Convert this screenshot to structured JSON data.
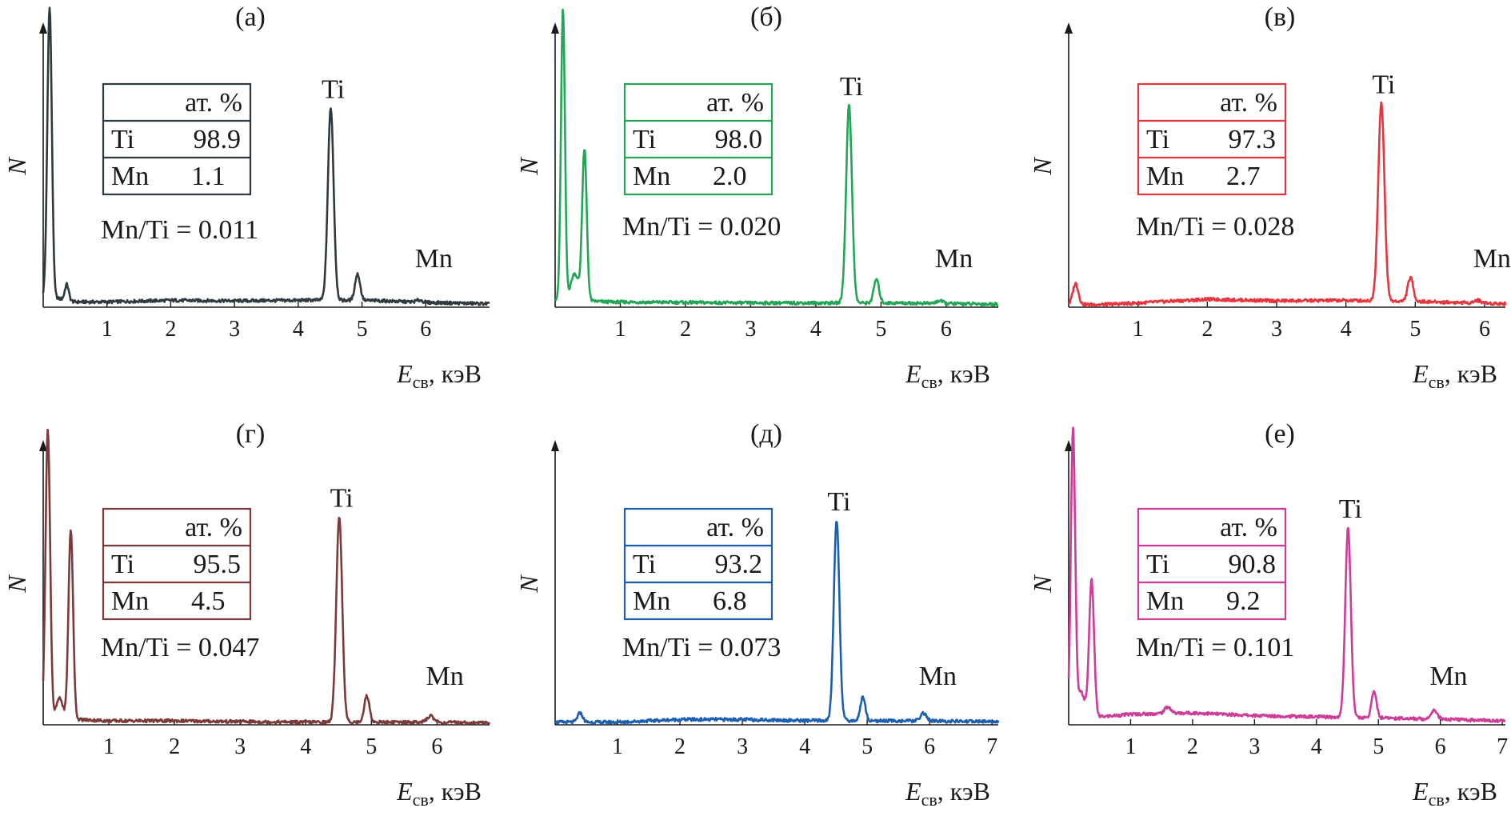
{
  "chart_data": [
    {
      "type": "line",
      "panel_label": "(а)",
      "color": "#2f3a3e",
      "ylabel": "N",
      "xlabel_main": "E",
      "xlabel_sub": "св",
      "xlabel_unit": ", кэВ",
      "xlim": [
        0,
        7.0
      ],
      "ylim": [
        0,
        100
      ],
      "xticks": [
        "1",
        "2",
        "3",
        "4",
        "5",
        "6"
      ],
      "table_header": "ат. %",
      "table_rows": [
        {
          "element": "Ti",
          "value": "98.9"
        },
        {
          "element": "Mn",
          "value": "1.1"
        }
      ],
      "ratio_text": "Mn/Ti = 0.011",
      "peak_labels": [
        {
          "text": "Ti",
          "x": 4.51
        },
        {
          "text": "Mn",
          "x": 5.9
        }
      ],
      "background": [
        [
          0.1,
          4
        ],
        [
          0.5,
          2
        ],
        [
          1,
          2
        ],
        [
          2,
          2.6
        ],
        [
          3,
          2.4
        ],
        [
          4,
          2.6
        ],
        [
          4.3,
          2.7
        ],
        [
          5.2,
          2.5
        ],
        [
          6,
          1.8
        ],
        [
          7,
          1.3
        ]
      ],
      "peaks": [
        {
          "center": 0.1,
          "height": 110,
          "width": 0.035
        },
        {
          "center": 0.37,
          "height": 6,
          "width": 0.03
        },
        {
          "center": 4.51,
          "height": 73,
          "width": 0.045
        },
        {
          "center": 4.93,
          "height": 10,
          "width": 0.04
        },
        {
          "center": 5.9,
          "height": 0.8,
          "width": 0.05
        }
      ]
    },
    {
      "type": "line",
      "panel_label": "(б)",
      "color": "#22a655",
      "ylabel": "N",
      "xlabel_main": "E",
      "xlabel_sub": "св",
      "xlabel_unit": ", кэВ",
      "xlim": [
        0,
        6.8
      ],
      "ylim": [
        0,
        100
      ],
      "xticks": [
        "1",
        "2",
        "3",
        "4",
        "5",
        "6"
      ],
      "table_header": "ат. %",
      "table_rows": [
        {
          "element": "Ti",
          "value": "98.0"
        },
        {
          "element": "Mn",
          "value": "2.0"
        }
      ],
      "ratio_text": "Mn/Ti = 0.020",
      "peak_labels": [
        {
          "text": "Ti",
          "x": 4.51
        },
        {
          "text": "Mn",
          "x": 5.9
        }
      ],
      "background": [
        [
          0.1,
          3
        ],
        [
          0.8,
          2
        ],
        [
          2,
          1.8
        ],
        [
          3,
          1.6
        ],
        [
          4,
          1.6
        ],
        [
          5.3,
          1.6
        ],
        [
          6.8,
          1.1
        ]
      ],
      "peaks": [
        {
          "center": 0.12,
          "height": 110,
          "width": 0.03
        },
        {
          "center": 0.45,
          "height": 57,
          "width": 0.035
        },
        {
          "center": 0.3,
          "height": 10,
          "width": 0.06
        },
        {
          "center": 4.51,
          "height": 75,
          "width": 0.045
        },
        {
          "center": 4.93,
          "height": 9,
          "width": 0.04
        },
        {
          "center": 5.9,
          "height": 1,
          "width": 0.05
        }
      ]
    },
    {
      "type": "line",
      "panel_label": "(в)",
      "color": "#e8343c",
      "ylabel": "N",
      "xlabel_main": "E",
      "xlabel_sub": "св",
      "xlabel_unit": ", кэВ",
      "xlim": [
        0,
        6.3
      ],
      "ylim": [
        0,
        100
      ],
      "xticks": [
        "1",
        "2",
        "3",
        "4",
        "5",
        "6"
      ],
      "table_header": "ат. %",
      "table_rows": [
        {
          "element": "Ti",
          "value": "97.3"
        },
        {
          "element": "Mn",
          "value": "2.7"
        }
      ],
      "ratio_text": "Mn/Ti = 0.028",
      "peak_labels": [
        {
          "text": "Ti",
          "x": 4.51
        },
        {
          "text": "Mn",
          "x": 5.9
        }
      ],
      "background": [
        [
          0.05,
          1
        ],
        [
          0.5,
          1
        ],
        [
          1,
          1.6
        ],
        [
          2,
          3
        ],
        [
          3,
          2.4
        ],
        [
          4,
          2.6
        ],
        [
          5.3,
          2
        ],
        [
          6.3,
          1.3
        ]
      ],
      "peaks": [
        {
          "center": 0.1,
          "height": 8,
          "width": 0.04
        },
        {
          "center": 4.51,
          "height": 75,
          "width": 0.045
        },
        {
          "center": 4.93,
          "height": 9,
          "width": 0.04
        },
        {
          "center": 5.9,
          "height": 1,
          "width": 0.05
        }
      ]
    },
    {
      "type": "line",
      "panel_label": "(г)",
      "color": "#7a3a3a",
      "ylabel": "N",
      "xlabel_main": "E",
      "xlabel_sub": "св",
      "xlabel_unit": ", кэВ",
      "xlim": [
        0,
        6.8
      ],
      "ylim": [
        0,
        100
      ],
      "xticks": [
        "1",
        "2",
        "3",
        "4",
        "5",
        "6"
      ],
      "table_header": "ат. %",
      "table_rows": [
        {
          "element": "Ti",
          "value": "95.5"
        },
        {
          "element": "Mn",
          "value": "4.5"
        }
      ],
      "ratio_text": "Mn/Ti = 0.047",
      "peak_labels": [
        {
          "text": "Ti",
          "x": 4.51
        },
        {
          "text": "Mn",
          "x": 5.9
        }
      ],
      "background": [
        [
          0.1,
          2
        ],
        [
          0.5,
          2
        ],
        [
          1,
          1.5
        ],
        [
          2,
          1.5
        ],
        [
          3,
          1.2
        ],
        [
          4,
          1.0
        ],
        [
          5.2,
          1
        ],
        [
          6.8,
          0.8
        ]
      ],
      "peaks": [
        {
          "center": 0.07,
          "height": 110,
          "width": 0.035
        },
        {
          "center": 0.42,
          "height": 72,
          "width": 0.035
        },
        {
          "center": 0.25,
          "height": 8,
          "width": 0.05
        },
        {
          "center": 4.51,
          "height": 78,
          "width": 0.045
        },
        {
          "center": 4.93,
          "height": 10,
          "width": 0.04
        },
        {
          "center": 5.9,
          "height": 2.5,
          "width": 0.05
        }
      ]
    },
    {
      "type": "line",
      "panel_label": "(д)",
      "color": "#1c5fb0",
      "ylabel": "N",
      "xlabel_main": "E",
      "xlabel_sub": "св",
      "xlabel_unit": ", кэВ",
      "xlim": [
        0,
        7.1
      ],
      "ylim": [
        0,
        100
      ],
      "xticks": [
        "1",
        "2",
        "3",
        "4",
        "5",
        "6",
        "7"
      ],
      "table_header": "ат. %",
      "table_rows": [
        {
          "element": "Ti",
          "value": "93.2"
        },
        {
          "element": "Mn",
          "value": "6.8"
        }
      ],
      "ratio_text": "Mn/Ti = 0.073",
      "peak_labels": [
        {
          "text": "Ti",
          "x": 4.51
        },
        {
          "text": "Mn",
          "x": 5.9
        }
      ],
      "background": [
        [
          0,
          1
        ],
        [
          1,
          1
        ],
        [
          2,
          2
        ],
        [
          3,
          2
        ],
        [
          4,
          1.6
        ],
        [
          5.3,
          1.5
        ],
        [
          7.1,
          1.2
        ]
      ],
      "peaks": [
        {
          "center": 0.4,
          "height": 3.5,
          "width": 0.04
        },
        {
          "center": 4.51,
          "height": 76,
          "width": 0.045
        },
        {
          "center": 4.93,
          "height": 9,
          "width": 0.04
        },
        {
          "center": 5.9,
          "height": 3,
          "width": 0.05
        }
      ]
    },
    {
      "type": "line",
      "panel_label": "(е)",
      "color": "#cf3b98",
      "ylabel": "N",
      "xlabel_main": "E",
      "xlabel_sub": "св",
      "xlabel_unit": ", кэВ",
      "xlim": [
        0,
        7.05
      ],
      "ylim": [
        0,
        100
      ],
      "xticks": [
        "1",
        "2",
        "3",
        "4",
        "5",
        "6",
        "7"
      ],
      "table_header": "ат. %",
      "table_rows": [
        {
          "element": "Ti",
          "value": "90.8"
        },
        {
          "element": "Mn",
          "value": "9.2"
        }
      ],
      "ratio_text": "Mn/Ti = 0.101",
      "peak_labels": [
        {
          "text": "Ti",
          "x": 4.51
        },
        {
          "text": "Mn",
          "x": 5.9
        }
      ],
      "background": [
        [
          0.1,
          2
        ],
        [
          0.5,
          3
        ],
        [
          1,
          4
        ],
        [
          2,
          4.5
        ],
        [
          3,
          3.5
        ],
        [
          4,
          3
        ],
        [
          5.3,
          2.5
        ],
        [
          7.05,
          1.5
        ]
      ],
      "peaks": [
        {
          "center": 0.07,
          "height": 110,
          "width": 0.035
        },
        {
          "center": 0.37,
          "height": 52,
          "width": 0.04
        },
        {
          "center": 0.2,
          "height": 10,
          "width": 0.06
        },
        {
          "center": 1.6,
          "height": 2.5,
          "width": 0.05
        },
        {
          "center": 4.51,
          "height": 72,
          "width": 0.045
        },
        {
          "center": 4.93,
          "height": 10,
          "width": 0.04
        },
        {
          "center": 5.9,
          "height": 3.5,
          "width": 0.05
        }
      ]
    }
  ]
}
